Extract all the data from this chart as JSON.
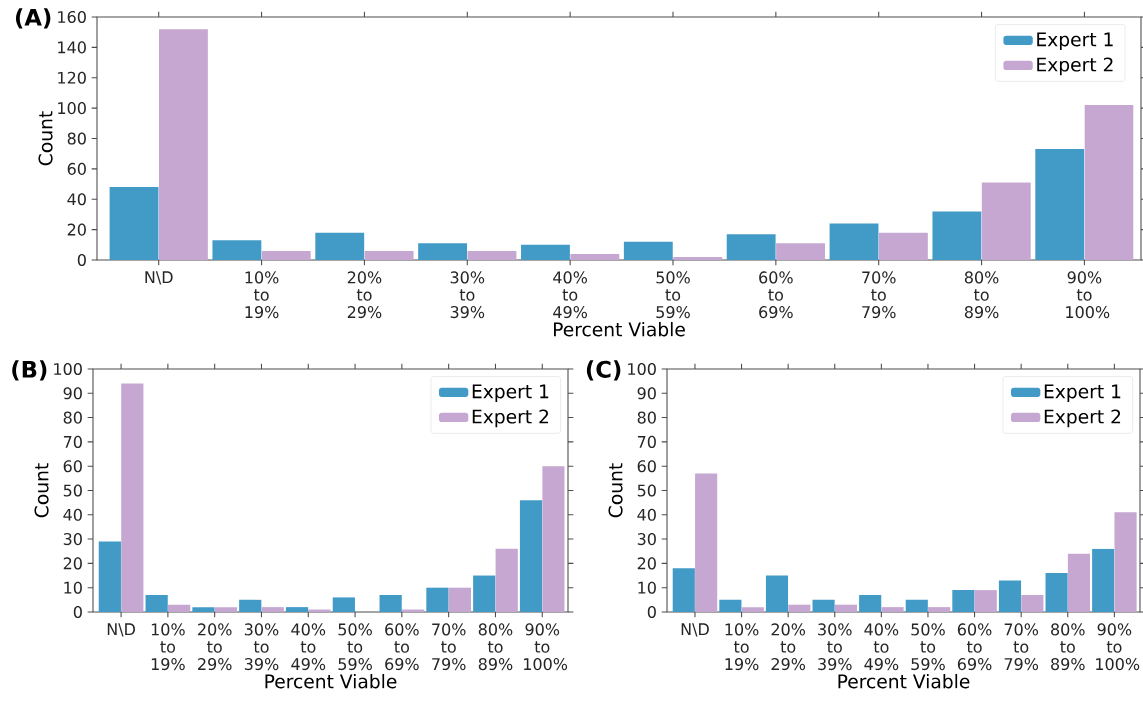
{
  "chart_data": [
    {
      "type": "bar",
      "title": "(A)",
      "xlabel": "Percent Viable",
      "ylabel": "Count",
      "categories": [
        "N\\D",
        "10% to 19%",
        "20% to 29%",
        "30% to 39%",
        "40% to 49%",
        "50% to 59%",
        "60% to 69%",
        "70% to 79%",
        "80% to 89%",
        "90% to 100%"
      ],
      "series": [
        {
          "name": "Expert 1",
          "color": "#429ac7",
          "values": [
            48,
            13,
            18,
            11,
            10,
            12,
            17,
            24,
            32,
            73
          ]
        },
        {
          "name": "Expert 2",
          "color": "#c5a7d1",
          "values": [
            152,
            6,
            6,
            6,
            4,
            2,
            11,
            18,
            51,
            102
          ]
        }
      ],
      "ylim": [
        0,
        160
      ],
      "yticks": [
        0,
        20,
        40,
        60,
        80,
        100,
        120,
        140,
        160
      ],
      "legend": "top right"
    },
    {
      "type": "bar",
      "title": "(B)",
      "xlabel": "Percent Viable",
      "ylabel": "Count",
      "categories": [
        "N\\D",
        "10% to 19%",
        "20% to 29%",
        "30% to 39%",
        "40% to 49%",
        "50% to 59%",
        "60% to 69%",
        "70% to 79%",
        "80% to 89%",
        "90% to 100%"
      ],
      "series": [
        {
          "name": "Expert 1",
          "color": "#429ac7",
          "values": [
            29,
            7,
            2,
            5,
            2,
            6,
            7,
            10,
            15,
            46
          ]
        },
        {
          "name": "Expert 2",
          "color": "#c5a7d1",
          "values": [
            94,
            3,
            2,
            2,
            1,
            0,
            1,
            10,
            26,
            60
          ]
        }
      ],
      "ylim": [
        0,
        100
      ],
      "yticks": [
        0,
        10,
        20,
        30,
        40,
        50,
        60,
        70,
        80,
        90,
        100
      ],
      "legend": "top right"
    },
    {
      "type": "bar",
      "title": "(C)",
      "xlabel": "Percent Viable",
      "ylabel": "Count",
      "categories": [
        "N\\D",
        "10% to 19%",
        "20% to 29%",
        "30% to 39%",
        "40% to 49%",
        "50% to 59%",
        "60% to 69%",
        "70% to 79%",
        "80% to 89%",
        "90% to 100%"
      ],
      "series": [
        {
          "name": "Expert 1",
          "color": "#429ac7",
          "values": [
            18,
            5,
            15,
            5,
            7,
            5,
            9,
            13,
            16,
            26
          ]
        },
        {
          "name": "Expert 2",
          "color": "#c5a7d1",
          "values": [
            57,
            2,
            3,
            3,
            2,
            2,
            9,
            7,
            24,
            41
          ]
        }
      ],
      "ylim": [
        0,
        100
      ],
      "yticks": [
        0,
        10,
        20,
        30,
        40,
        50,
        60,
        70,
        80,
        90,
        100
      ],
      "legend": "top right"
    }
  ]
}
